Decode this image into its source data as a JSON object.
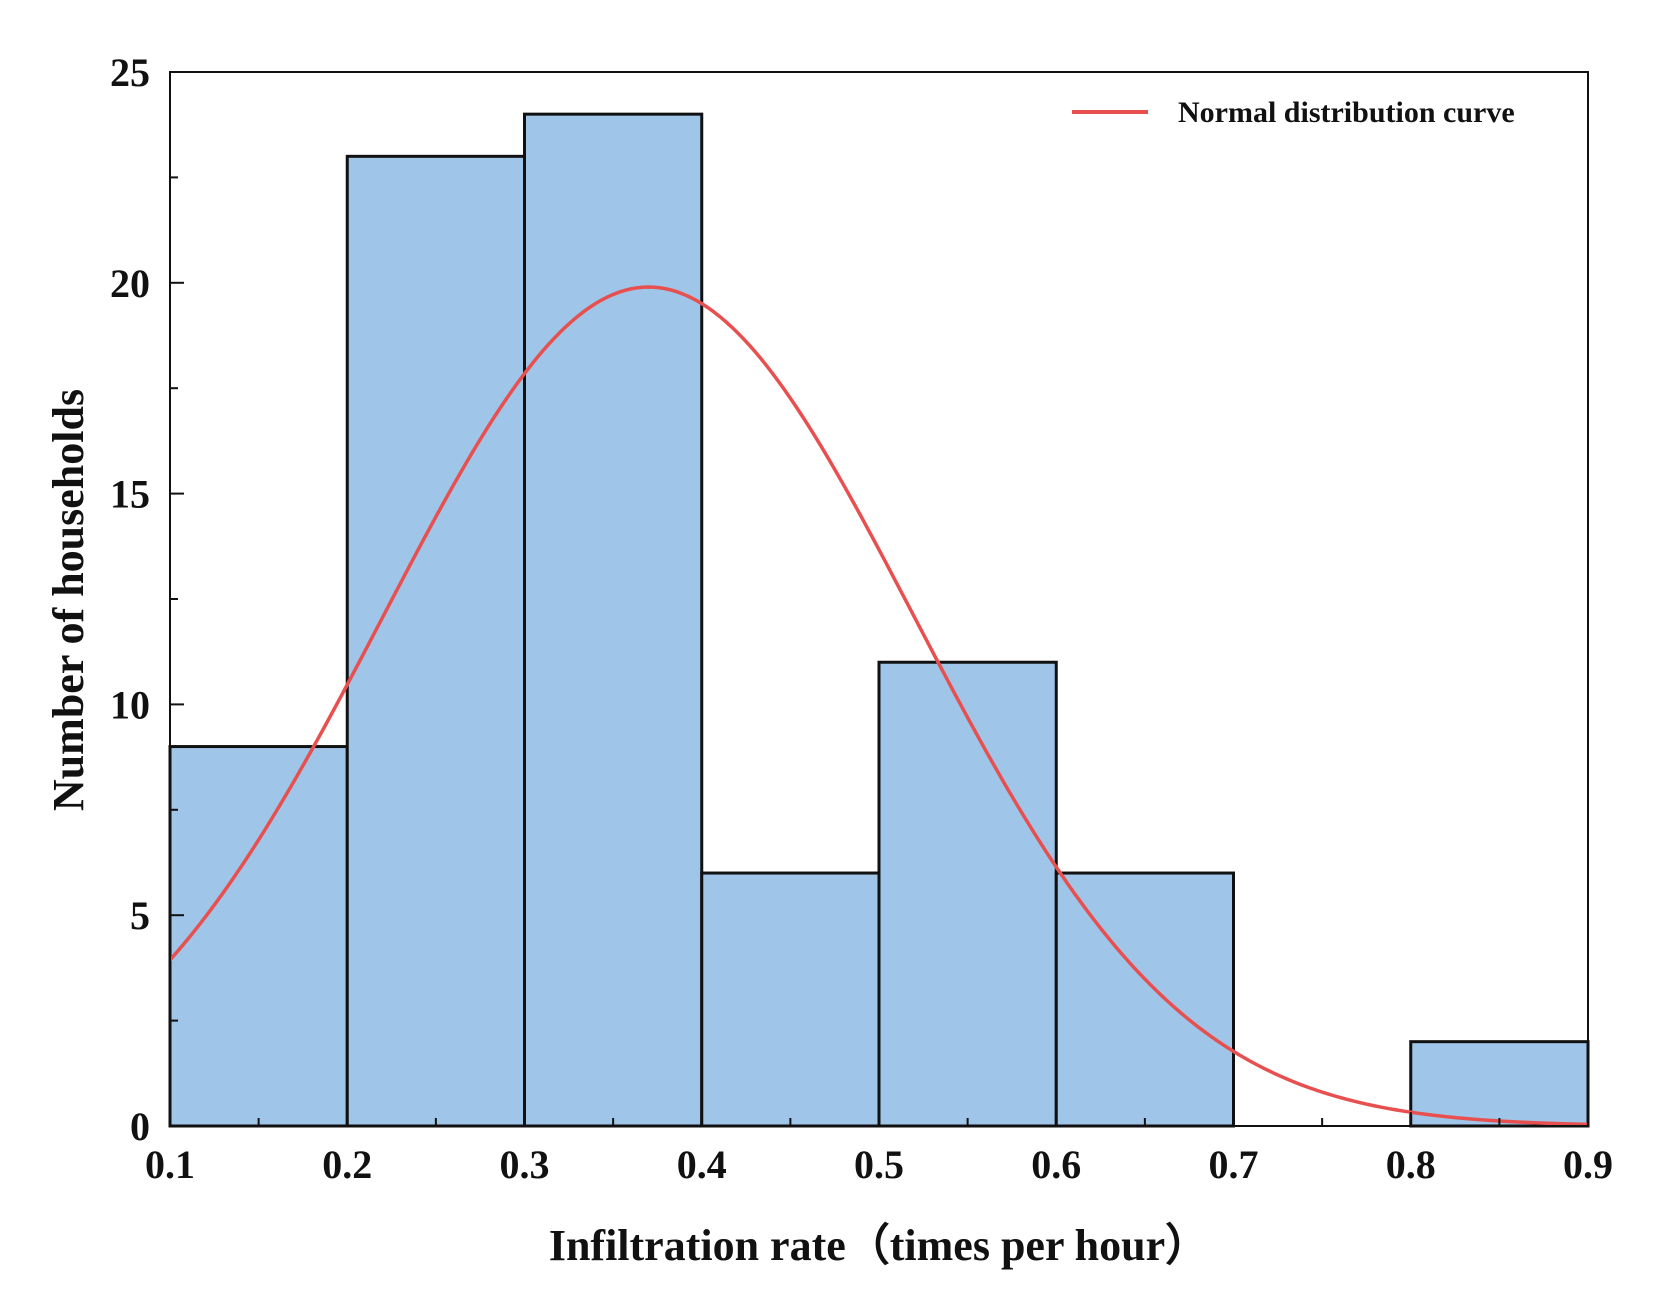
{
  "chart_data": {
    "type": "bar",
    "subtype": "histogram",
    "title": "",
    "xlabel": "Infiltration rate（times per hour）",
    "ylabel": "Number of households",
    "xlim": [
      0.1,
      0.9
    ],
    "ylim": [
      0,
      25
    ],
    "x_ticks": [
      "0.1",
      "0.2",
      "0.3",
      "0.4",
      "0.5",
      "0.6",
      "0.7",
      "0.8",
      "0.9"
    ],
    "y_ticks": [
      "0",
      "5",
      "10",
      "15",
      "20",
      "25"
    ],
    "bins": [
      {
        "from": 0.1,
        "to": 0.2,
        "count": 9
      },
      {
        "from": 0.2,
        "to": 0.3,
        "count": 23
      },
      {
        "from": 0.3,
        "to": 0.4,
        "count": 24
      },
      {
        "from": 0.4,
        "to": 0.5,
        "count": 6
      },
      {
        "from": 0.5,
        "to": 0.6,
        "count": 11
      },
      {
        "from": 0.6,
        "to": 0.7,
        "count": 6
      },
      {
        "from": 0.7,
        "to": 0.8,
        "count": 0
      },
      {
        "from": 0.8,
        "to": 0.9,
        "count": 2
      }
    ],
    "curve": {
      "name": "Normal distribution curve",
      "mean": 0.37,
      "peak": 19.9,
      "sd": 0.15
    },
    "legend": {
      "position": "top-right",
      "entries": [
        "Normal distribution curve"
      ]
    },
    "grid": false
  },
  "colors": {
    "bar_fill": "#9fc5e8",
    "bar_stroke": "#111111",
    "curve": "#e8504f",
    "axis": "#111111"
  }
}
